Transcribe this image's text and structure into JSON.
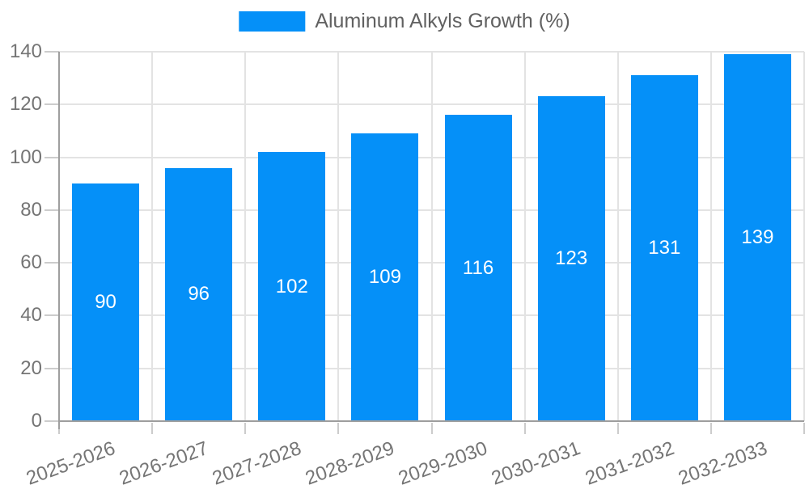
{
  "chart_data": {
    "type": "bar",
    "title": "",
    "legend_label": "Aluminum Alkyls Growth (%)",
    "legend_position": "top-center",
    "categories": [
      "2025-2026",
      "2026-2027",
      "2027-2028",
      "2028-2029",
      "2029-2030",
      "2030-2031",
      "2031-2032",
      "2032-2033"
    ],
    "values": [
      90,
      96,
      102,
      109,
      116,
      123,
      131,
      139
    ],
    "xlabel": "",
    "ylabel": "",
    "ylim": [
      0,
      140
    ],
    "ytick_step": 20,
    "yticks": [
      0,
      20,
      40,
      60,
      80,
      100,
      120,
      140
    ],
    "grid": "on",
    "x_label_rotation_deg": -20,
    "value_labels_position": "inside-center"
  },
  "colors": {
    "bar": "#0590f8",
    "gridline": "#e3e3e3",
    "axis_line": "#9e9e9e",
    "tick": "#cccccc",
    "tick_label": "#757575",
    "legend_text": "#616161",
    "value_label": "#ffffff",
    "background": "#ffffff"
  }
}
